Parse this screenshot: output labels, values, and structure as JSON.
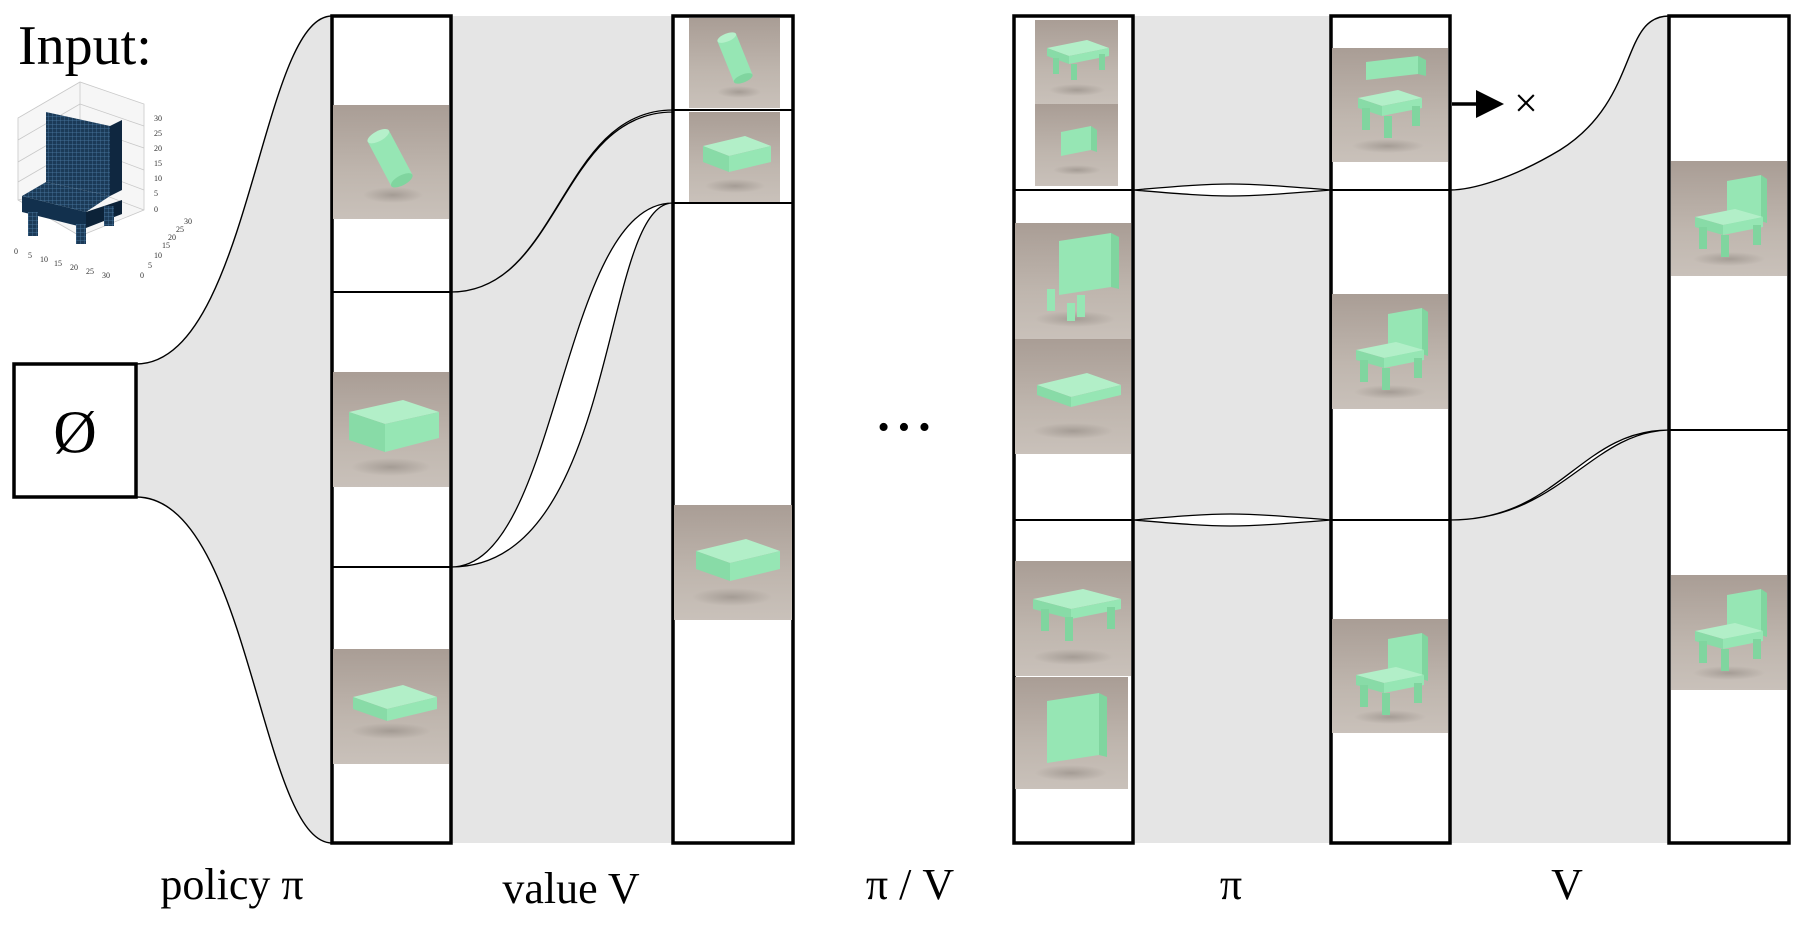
{
  "input": {
    "label": "Input:"
  },
  "empty_state": {
    "symbol": "Ø"
  },
  "plot": {
    "z_ticks": [
      "0",
      "5",
      "10",
      "15",
      "20",
      "25",
      "30"
    ],
    "x_ticks": [
      "0",
      "5",
      "10",
      "15",
      "20",
      "25",
      "30"
    ],
    "y_ticks": [
      "0",
      "5",
      "10",
      "15",
      "20",
      "25",
      "30"
    ]
  },
  "labels": {
    "policy": "policy π",
    "value": "value V",
    "pi_v": "π / V",
    "pi": "π",
    "v": "V"
  },
  "ellipsis": "• • •",
  "reject_mark": "×",
  "colors": {
    "flow": "#e5e5e5",
    "thumb_bg": "#b4aaa2",
    "shape": "#96e6b4",
    "shape_dark": "#6fc690",
    "voxel": "#1a3550"
  }
}
